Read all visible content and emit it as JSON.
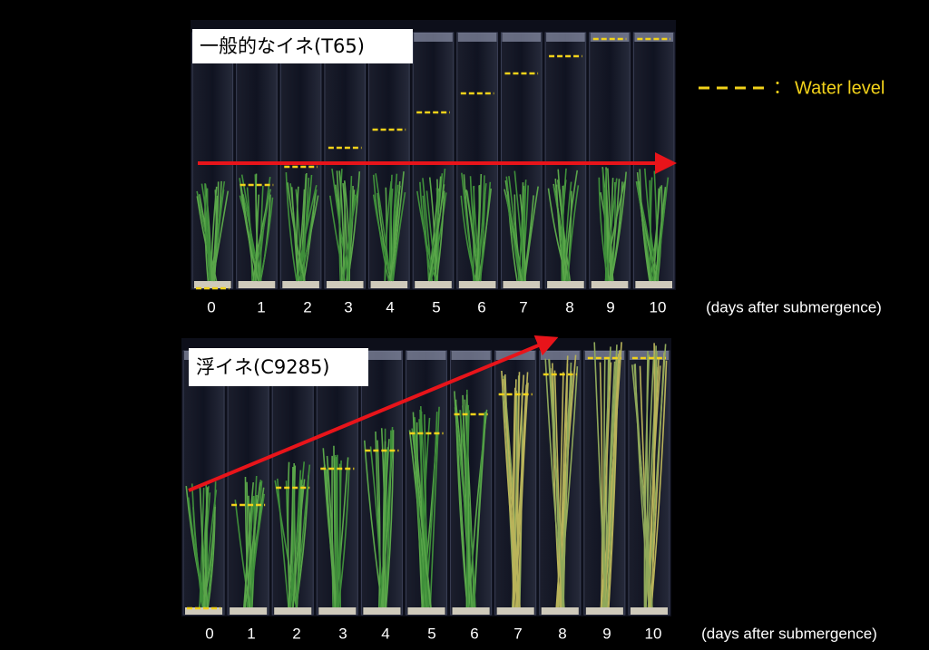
{
  "legend": {
    "separator": "：",
    "label": "Water level"
  },
  "panels": [
    {
      "title": "一般的なイネ(T65)",
      "days": [
        0,
        1,
        2,
        3,
        4,
        5,
        6,
        7,
        8,
        9,
        10
      ],
      "axis_label": "(days after submergence)"
    },
    {
      "title": "浮イネ(C9285)",
      "days": [
        0,
        1,
        2,
        3,
        4,
        5,
        6,
        7,
        8,
        9,
        10
      ],
      "axis_label": "(days after submergence)"
    }
  ]
}
